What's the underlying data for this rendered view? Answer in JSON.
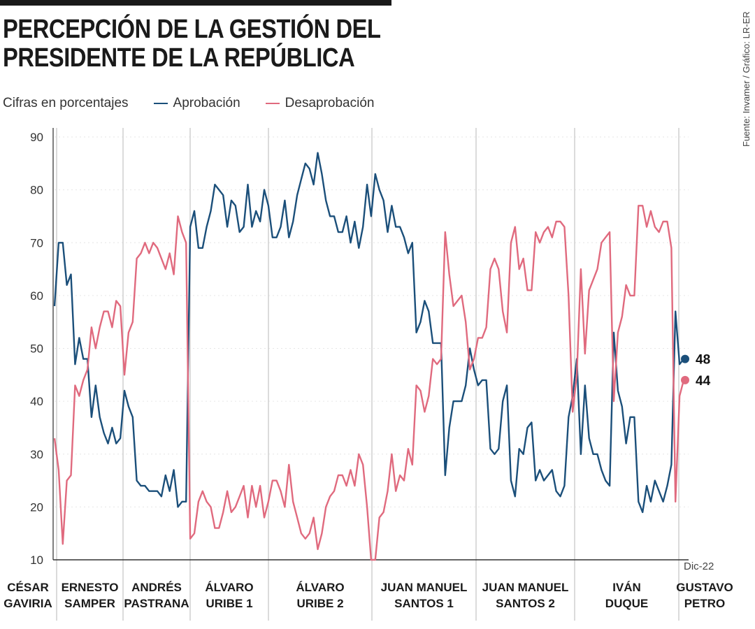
{
  "title_line1": "PERCEPCIÓN DE LA GESTIÓN DEL",
  "title_line2": "PRESIDENTE DE LA REPÚBLICA",
  "subtitle": "Cifras en porcentajes",
  "source": "Fuente: Invamer / Gráfico: LR-ER",
  "chart_data": {
    "type": "line",
    "ylim": [
      10,
      90
    ],
    "yticks": [
      10,
      20,
      30,
      40,
      50,
      60,
      70,
      80,
      90
    ],
    "grid": true,
    "legend": "top-left",
    "x_end_label": "Dic-22",
    "periods": [
      {
        "l1": "CÉSAR",
        "l2": "GAVIRIA"
      },
      {
        "l1": "ERNESTO",
        "l2": "SAMPER"
      },
      {
        "l1": "ANDRÉS",
        "l2": "PASTRANA"
      },
      {
        "l1": "ÁLVARO",
        "l2": "URIBE 1"
      },
      {
        "l1": "ÁLVARO",
        "l2": "URIBE 2"
      },
      {
        "l1": "JUAN MANUEL",
        "l2": "SANTOS 1"
      },
      {
        "l1": "JUAN MANUEL",
        "l2": "SANTOS 2"
      },
      {
        "l1": "IVÁN",
        "l2": "DUQUE"
      },
      {
        "l1": "GUSTAVO",
        "l2": "PETRO"
      }
    ],
    "series": [
      {
        "name": "Aprobación",
        "color": "#1b4f7a",
        "last_label": "48",
        "values": [
          58,
          70,
          70,
          62,
          64,
          47,
          52,
          48,
          48,
          37,
          43,
          37,
          34,
          32,
          35,
          32,
          33,
          42,
          39,
          37,
          25,
          24,
          24,
          23,
          23,
          23,
          22,
          26,
          23,
          27,
          20,
          21,
          21,
          73,
          76,
          69,
          69,
          73,
          76,
          81,
          80,
          79,
          73,
          78,
          77,
          72,
          73,
          81,
          73,
          76,
          74,
          80,
          77,
          71,
          71,
          73,
          78,
          71,
          74,
          79,
          82,
          85,
          84,
          81,
          87,
          83,
          78,
          75,
          75,
          72,
          72,
          75,
          70,
          74,
          69,
          73,
          81,
          75,
          83,
          80,
          78,
          72,
          77,
          73,
          73,
          71,
          68,
          70,
          53,
          55,
          59,
          57,
          51,
          51,
          51,
          26,
          35,
          40,
          40,
          40,
          43,
          50,
          46,
          43,
          44,
          44,
          31,
          30,
          31,
          40,
          43,
          25,
          22,
          31,
          30,
          35,
          36,
          25,
          27,
          25,
          26,
          27,
          23,
          22,
          24,
          37,
          41,
          48,
          30,
          43,
          33,
          30,
          30,
          27,
          25,
          24,
          53,
          42,
          39,
          32,
          37,
          37,
          21,
          19,
          24,
          21,
          25,
          23,
          21,
          24,
          28,
          57,
          47,
          48
        ]
      },
      {
        "name": "Desaprobación",
        "color": "#e06a7e",
        "last_label": "44",
        "values": [
          33,
          27,
          13,
          25,
          26,
          43,
          41,
          44,
          46,
          54,
          50,
          54,
          57,
          57,
          54,
          59,
          58,
          45,
          53,
          55,
          67,
          68,
          70,
          68,
          70,
          69,
          67,
          65,
          68,
          64,
          75,
          72,
          70,
          14,
          15,
          21,
          23,
          21,
          20,
          16,
          16,
          19,
          23,
          19,
          20,
          22,
          24,
          18,
          24,
          20,
          24,
          18,
          21,
          25,
          25,
          23,
          20,
          28,
          21,
          18,
          15,
          14,
          15,
          18,
          12,
          15,
          20,
          22,
          23,
          26,
          26,
          24,
          27,
          24,
          30,
          28,
          20,
          10,
          10,
          18,
          19,
          23,
          30,
          23,
          26,
          25,
          31,
          28,
          43,
          42,
          38,
          41,
          48,
          47,
          48,
          72,
          64,
          58,
          59,
          60,
          55,
          46,
          48,
          52,
          52,
          54,
          65,
          67,
          65,
          57,
          53,
          70,
          73,
          65,
          67,
          61,
          61,
          72,
          70,
          72,
          73,
          71,
          74,
          74,
          73,
          60,
          38,
          45,
          65,
          49,
          61,
          63,
          65,
          70,
          71,
          72,
          40,
          53,
          56,
          62,
          60,
          60,
          77,
          77,
          73,
          76,
          73,
          72,
          74,
          74,
          69,
          21,
          41,
          44
        ]
      }
    ]
  }
}
